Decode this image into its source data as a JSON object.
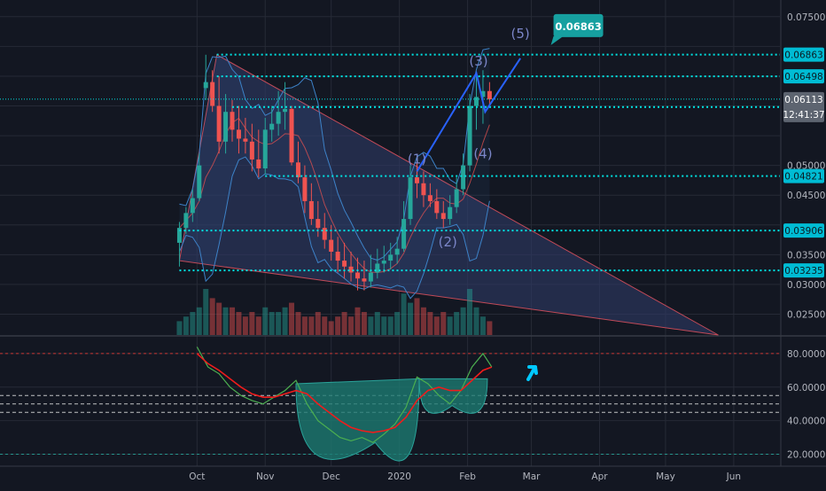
{
  "colors": {
    "background": "#131722",
    "grid": "#262a36",
    "up": "#26a69a",
    "down": "#ef5350",
    "level": "#00e5e5",
    "level_label_bg": "#00bcd4",
    "last_price_bg": "#5d6470",
    "wedge_fill": "#2e3b66",
    "wedge_stroke": "#c24a58",
    "bollinger": "#3d82c8",
    "wave_line": "#2962ff",
    "wave_text": "#7b86c8",
    "target_bg": "#16a0a0",
    "rsi_line": "#4caf50",
    "rsi_ma": "#ef1c1c",
    "rsi_cup_fill": "#1d7a72",
    "rsi_band": "#e0e0e0",
    "rsi_upper": "#e53935",
    "rsi_lower": "#26a69a",
    "arrow": "#00c8ff",
    "axis_text": "#b2b5be"
  },
  "icons": {
    "breakout_arrow": "up-right-arrow-icon"
  },
  "chart_data": [
    {
      "type": "candlestick",
      "role": "price",
      "x": [
        "2019-09-23",
        "2019-09-26",
        "2019-09-29",
        "2019-10-02",
        "2019-10-05",
        "2019-10-08",
        "2019-10-11",
        "2019-10-14",
        "2019-10-17",
        "2019-10-20",
        "2019-10-23",
        "2019-10-26",
        "2019-10-29",
        "2019-11-01",
        "2019-11-04",
        "2019-11-07",
        "2019-11-10",
        "2019-11-13",
        "2019-11-16",
        "2019-11-19",
        "2019-11-22",
        "2019-11-25",
        "2019-11-28",
        "2019-12-01",
        "2019-12-04",
        "2019-12-07",
        "2019-12-10",
        "2019-12-13",
        "2019-12-16",
        "2019-12-19",
        "2019-12-22",
        "2019-12-25",
        "2019-12-28",
        "2019-12-31",
        "2020-01-03",
        "2020-01-06",
        "2020-01-09",
        "2020-01-12",
        "2020-01-15",
        "2020-01-18",
        "2020-01-21",
        "2020-01-24",
        "2020-01-27",
        "2020-01-30",
        "2020-02-02",
        "2020-02-05",
        "2020-02-08",
        "2020-02-11"
      ],
      "open": [
        0.037,
        0.0395,
        0.042,
        0.0445,
        0.063,
        0.064,
        0.06,
        0.054,
        0.059,
        0.056,
        0.0545,
        0.054,
        0.051,
        0.0495,
        0.056,
        0.057,
        0.059,
        0.0595,
        0.0505,
        0.048,
        0.044,
        0.041,
        0.0395,
        0.0375,
        0.0355,
        0.034,
        0.033,
        0.032,
        0.031,
        0.0305,
        0.032,
        0.0335,
        0.034,
        0.035,
        0.036,
        0.041,
        0.048,
        0.047,
        0.045,
        0.044,
        0.042,
        0.041,
        0.043,
        0.046,
        0.05,
        0.06,
        0.0615,
        0.0625
      ],
      "high": [
        0.0405,
        0.043,
        0.046,
        0.052,
        0.0686,
        0.066,
        0.065,
        0.062,
        0.061,
        0.06,
        0.058,
        0.057,
        0.056,
        0.058,
        0.06,
        0.0625,
        0.064,
        0.06,
        0.054,
        0.05,
        0.047,
        0.044,
        0.042,
        0.04,
        0.038,
        0.037,
        0.0355,
        0.0345,
        0.034,
        0.035,
        0.036,
        0.0365,
        0.037,
        0.038,
        0.044,
        0.05,
        0.0505,
        0.049,
        0.047,
        0.046,
        0.044,
        0.045,
        0.048,
        0.052,
        0.062,
        0.065,
        0.066,
        0.064
      ],
      "low": [
        0.033,
        0.0385,
        0.0405,
        0.044,
        0.061,
        0.059,
        0.052,
        0.052,
        0.054,
        0.052,
        0.052,
        0.049,
        0.048,
        0.0485,
        0.054,
        0.055,
        0.056,
        0.05,
        0.047,
        0.042,
        0.04,
        0.038,
        0.036,
        0.034,
        0.032,
        0.031,
        0.0305,
        0.029,
        0.029,
        0.0295,
        0.031,
        0.032,
        0.0325,
        0.0335,
        0.0355,
        0.04,
        0.0445,
        0.043,
        0.043,
        0.041,
        0.0395,
        0.04,
        0.042,
        0.045,
        0.049,
        0.056,
        0.057,
        0.06
      ],
      "close": [
        0.0395,
        0.042,
        0.0445,
        0.05,
        0.064,
        0.06,
        0.054,
        0.059,
        0.056,
        0.0545,
        0.054,
        0.051,
        0.0495,
        0.056,
        0.057,
        0.059,
        0.0595,
        0.0505,
        0.048,
        0.044,
        0.041,
        0.0395,
        0.0375,
        0.0355,
        0.034,
        0.033,
        0.032,
        0.031,
        0.0305,
        0.032,
        0.0335,
        0.034,
        0.035,
        0.036,
        0.041,
        0.048,
        0.047,
        0.045,
        0.044,
        0.042,
        0.041,
        0.043,
        0.046,
        0.05,
        0.06,
        0.0615,
        0.0625,
        0.0611
      ],
      "volume": [
        0.3,
        0.4,
        0.5,
        0.6,
        1.0,
        0.8,
        0.7,
        0.6,
        0.6,
        0.5,
        0.4,
        0.5,
        0.4,
        0.6,
        0.5,
        0.5,
        0.6,
        0.7,
        0.5,
        0.4,
        0.4,
        0.5,
        0.4,
        0.3,
        0.4,
        0.5,
        0.4,
        0.6,
        0.5,
        0.4,
        0.5,
        0.4,
        0.4,
        0.5,
        0.9,
        0.7,
        0.8,
        0.6,
        0.5,
        0.4,
        0.5,
        0.4,
        0.5,
        0.6,
        1.0,
        0.6,
        0.4,
        0.3
      ],
      "ylim": [
        0.0215,
        0.0778
      ],
      "y_ticks": [
        "0.02500",
        "0.03000",
        "0.03500",
        "0.04500",
        "0.05000",
        "0.07500"
      ],
      "x_ticks": [
        "Oct",
        "Nov",
        "Dec",
        "2020",
        "Feb",
        "Mar",
        "Apr",
        "May",
        "Jun"
      ],
      "x_tick_dates": [
        "2019-10-01",
        "2019-11-01",
        "2019-12-01",
        "2020-01-01",
        "2020-02-01",
        "2020-03-01",
        "2020-04-01",
        "2020-05-01",
        "2020-06-01"
      ],
      "xlim": [
        "2019-09-20",
        "2020-06-22"
      ],
      "levels": [
        {
          "value": 0.06863,
          "label": "0.06863",
          "from": "2019-10-10"
        },
        {
          "value": 0.06498,
          "label": "0.06498",
          "from": "2019-10-10"
        },
        {
          "value": 0.05982,
          "label": "0.05982",
          "from": "2019-10-17"
        },
        {
          "value": 0.04821,
          "label": "0.04821",
          "from": "2019-11-01"
        },
        {
          "value": 0.03906,
          "label": "0.03906",
          "from": "2019-09-23"
        },
        {
          "value": 0.03235,
          "label": "0.03235",
          "from": "2019-09-23"
        }
      ],
      "last_price": {
        "value": 0.06113,
        "label": "0.06113",
        "countdown": "12:41:37"
      },
      "wedge": [
        [
          "2019-09-23",
          0.034
        ],
        [
          "2019-10-10",
          0.0686
        ],
        [
          "2020-05-25",
          0.0215
        ]
      ],
      "wave_path": [
        [
          "2020-01-09",
          0.049
        ],
        [
          "2020-02-05",
          0.0655
        ],
        [
          "2020-02-09",
          0.059
        ],
        [
          "2020-02-25",
          0.068
        ]
      ],
      "wave_labels": [
        {
          "text": "(1)",
          "x": "2020-01-09",
          "y": 0.0503
        },
        {
          "text": "(2)",
          "x": "2020-01-23",
          "y": 0.0364
        },
        {
          "text": "(3)",
          "x": "2020-02-06",
          "y": 0.0668
        },
        {
          "text": "(4)",
          "x": "2020-02-08",
          "y": 0.0512
        },
        {
          "text": "(5)",
          "x": "2020-02-25",
          "y": 0.0714
        }
      ],
      "target": {
        "label": "0.06863",
        "x": "2020-03-01",
        "y": 0.0735
      }
    },
    {
      "type": "line",
      "role": "oscillator",
      "ylim": [
        15,
        90
      ],
      "y_ticks": [
        "80.00000",
        "60.00000",
        "40.00000",
        "20.00000"
      ],
      "levels": [
        80,
        55,
        50,
        45,
        20
      ],
      "x": [
        "2019-10-01",
        "2019-10-06",
        "2019-10-11",
        "2019-10-16",
        "2019-10-21",
        "2019-10-26",
        "2019-10-31",
        "2019-11-05",
        "2019-11-10",
        "2019-11-15",
        "2019-11-20",
        "2019-11-25",
        "2019-11-30",
        "2019-12-05",
        "2019-12-10",
        "2019-12-15",
        "2019-12-20",
        "2019-12-25",
        "2019-12-30",
        "2020-01-04",
        "2020-01-09",
        "2020-01-14",
        "2020-01-19",
        "2020-01-24",
        "2020-01-29",
        "2020-02-03",
        "2020-02-08",
        "2020-02-12"
      ],
      "series": [
        {
          "values": [
            84,
            72,
            68,
            60,
            55,
            52,
            50,
            54,
            58,
            64,
            50,
            40,
            35,
            30,
            28,
            30,
            27,
            32,
            38,
            48,
            66,
            62,
            55,
            50,
            58,
            72,
            80,
            72
          ]
        },
        {
          "values": [
            80,
            74,
            70,
            65,
            60,
            56,
            54,
            54,
            56,
            58,
            56,
            50,
            45,
            40,
            36,
            34,
            33,
            34,
            36,
            42,
            52,
            58,
            60,
            58,
            58,
            64,
            70,
            72
          ]
        }
      ],
      "cup": {
        "left": [
          "2019-11-15",
          62
        ],
        "right": [
          "2020-01-10",
          65
        ],
        "bottom": [
          "2019-12-21",
          27
        ]
      },
      "handle": {
        "left": [
          "2020-01-10",
          65
        ],
        "right": [
          "2020-02-10",
          65
        ],
        "bottom": [
          "2020-01-25",
          49
        ]
      }
    }
  ]
}
